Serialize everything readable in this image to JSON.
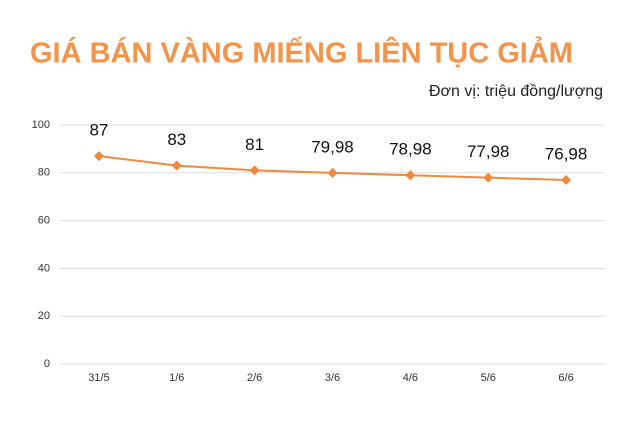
{
  "chart_data": {
    "type": "line",
    "title": "GIÁ BÁN VÀNG MIẾNG LIÊN TỤC GIẢM",
    "subtitle": "Đơn vị: triệu đồng/lượng",
    "categories": [
      "31/5",
      "1/6",
      "2/6",
      "3/6",
      "4/6",
      "5/6",
      "6/6"
    ],
    "values": [
      87,
      83,
      81,
      79.98,
      78.98,
      77.98,
      76.98
    ],
    "value_labels": [
      "87",
      "83",
      "81",
      "79,98",
      "78,98",
      "77,98",
      "76,98"
    ],
    "color": "#f0883e",
    "title_color": "#f4944a",
    "ylim": [
      0,
      100
    ],
    "yticks": [
      0,
      20,
      40,
      60,
      80,
      100
    ],
    "grid": true
  }
}
